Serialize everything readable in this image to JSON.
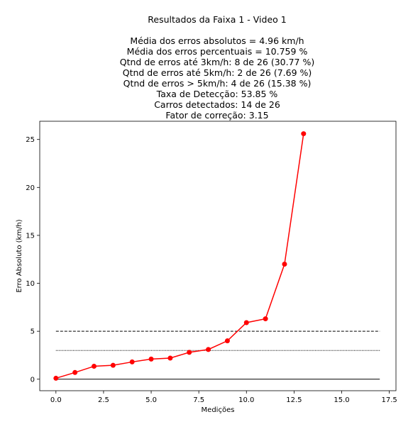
{
  "chart_data": {
    "type": "line",
    "title_lines": [
      "Resultados da Faixa 1 - Video 1",
      "",
      "Média dos erros absolutos =  4.96 km/h",
      "Média dos erros percentuais = 10.759 %",
      "Qtnd de erros até 3km/h: 8 de 26 (30.77 %)",
      "Qtnd de erros até 5km/h: 2 de 26 (7.69 %)",
      "Qtnd de erros > 5km/h: 4 de 26 (15.38 %)",
      "Taxa de Detecção: 53.85 %",
      "Carros detectados: 14 de 26",
      "Fator de correção: 3.15"
    ],
    "xlabel": "Medições",
    "ylabel": "Erro Absoluto (km/h)",
    "xlim": [
      -0.85,
      17.85
    ],
    "ylim": [
      -1.2,
      26.9
    ],
    "xticks": [
      0.0,
      2.5,
      5.0,
      7.5,
      10.0,
      12.5,
      15.0,
      17.5
    ],
    "xtick_labels": [
      "0.0",
      "2.5",
      "5.0",
      "7.5",
      "10.0",
      "12.5",
      "15.0",
      "17.5"
    ],
    "yticks": [
      0,
      5,
      10,
      15,
      20,
      25
    ],
    "ytick_labels": [
      "0",
      "5",
      "10",
      "15",
      "20",
      "25"
    ],
    "grid": false,
    "series": [
      {
        "color": "#ff0000",
        "marker": "circle",
        "x": [
          0,
          1,
          2,
          3,
          4,
          5,
          6,
          7,
          8,
          9,
          10,
          11,
          12,
          13
        ],
        "y": [
          0.1,
          0.7,
          1.35,
          1.45,
          1.8,
          2.1,
          2.2,
          2.8,
          3.1,
          4.0,
          5.9,
          6.3,
          12.0,
          25.6
        ]
      }
    ],
    "reference_lines": [
      {
        "y": 5,
        "x_start": 0,
        "x_end": 17,
        "style": "dashed",
        "color": "#000000"
      },
      {
        "y": 3,
        "x_start": 0,
        "x_end": 17,
        "style": "dotted",
        "color": "#000000"
      },
      {
        "y": 0,
        "x_start": 0,
        "x_end": 17,
        "style": "solid",
        "color": "#000000"
      }
    ]
  }
}
